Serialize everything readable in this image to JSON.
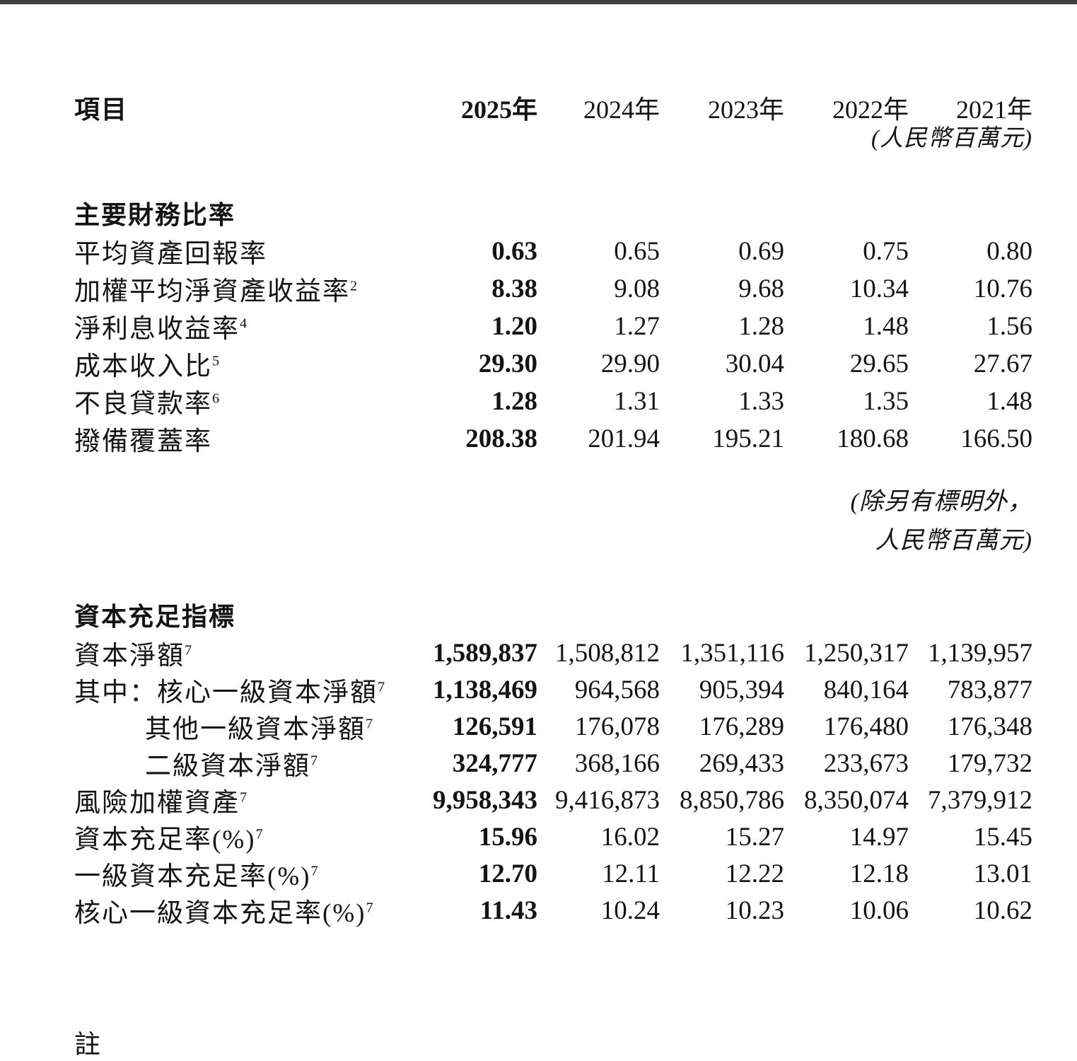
{
  "table": {
    "header": {
      "item": "項目",
      "years": [
        "2025年",
        "2024年",
        "2023年",
        "2022年",
        "2021年"
      ],
      "unit_note": "(人民幣百萬元)"
    },
    "sections": [
      {
        "title": "主要財務比率",
        "rows": [
          {
            "label": "平均資產回報率",
            "sup": "",
            "indent": false,
            "values": [
              "0.63",
              "0.65",
              "0.69",
              "0.75",
              "0.80"
            ]
          },
          {
            "label": "加權平均淨資產收益率",
            "sup": "2",
            "indent": false,
            "values": [
              "8.38",
              "9.08",
              "9.68",
              "10.34",
              "10.76"
            ]
          },
          {
            "label": "淨利息收益率",
            "sup": "4",
            "indent": false,
            "values": [
              "1.20",
              "1.27",
              "1.28",
              "1.48",
              "1.56"
            ]
          },
          {
            "label": "成本收入比",
            "sup": "5",
            "indent": false,
            "values": [
              "29.30",
              "29.90",
              "30.04",
              "29.65",
              "27.67"
            ]
          },
          {
            "label": "不良貸款率",
            "sup": "6",
            "indent": false,
            "values": [
              "1.28",
              "1.31",
              "1.33",
              "1.35",
              "1.48"
            ]
          },
          {
            "label": "撥備覆蓋率",
            "sup": "",
            "indent": false,
            "values": [
              "208.38",
              "201.94",
              "195.21",
              "180.68",
              "166.50"
            ]
          }
        ]
      },
      {
        "title": "資本充足指標",
        "pre_note_lines": [
          "(除另有標明外，",
          "人民幣百萬元)"
        ],
        "rows": [
          {
            "label": "資本淨額",
            "sup": "7",
            "indent": false,
            "values": [
              "1,589,837",
              "1,508,812",
              "1,351,116",
              "1,250,317",
              "1,139,957"
            ]
          },
          {
            "label": "其中：核心一級資本淨額",
            "sup": "7",
            "indent": false,
            "values": [
              "1,138,469",
              "964,568",
              "905,394",
              "840,164",
              "783,877"
            ]
          },
          {
            "label": "其他一級資本淨額",
            "sup": "7",
            "indent": true,
            "values": [
              "126,591",
              "176,078",
              "176,289",
              "176,480",
              "176,348"
            ]
          },
          {
            "label": "二級資本淨額",
            "sup": "7",
            "indent": true,
            "values": [
              "324,777",
              "368,166",
              "269,433",
              "233,673",
              "179,732"
            ]
          },
          {
            "label": "風險加權資產",
            "sup": "7",
            "indent": false,
            "values": [
              "9,958,343",
              "9,416,873",
              "8,850,786",
              "8,350,074",
              "7,379,912"
            ]
          },
          {
            "label": "資本充足率(%)",
            "sup": "7",
            "indent": false,
            "values": [
              "15.96",
              "16.02",
              "15.27",
              "14.97",
              "15.45"
            ]
          },
          {
            "label": "一級資本充足率(%)",
            "sup": "7",
            "indent": false,
            "values": [
              "12.70",
              "12.11",
              "12.22",
              "12.18",
              "13.01"
            ]
          },
          {
            "label": "核心一級資本充足率(%)",
            "sup": "7",
            "indent": false,
            "values": [
              "11.43",
              "10.24",
              "10.23",
              "10.06",
              "10.62"
            ]
          }
        ]
      }
    ],
    "bottom_partial_note": "註"
  }
}
